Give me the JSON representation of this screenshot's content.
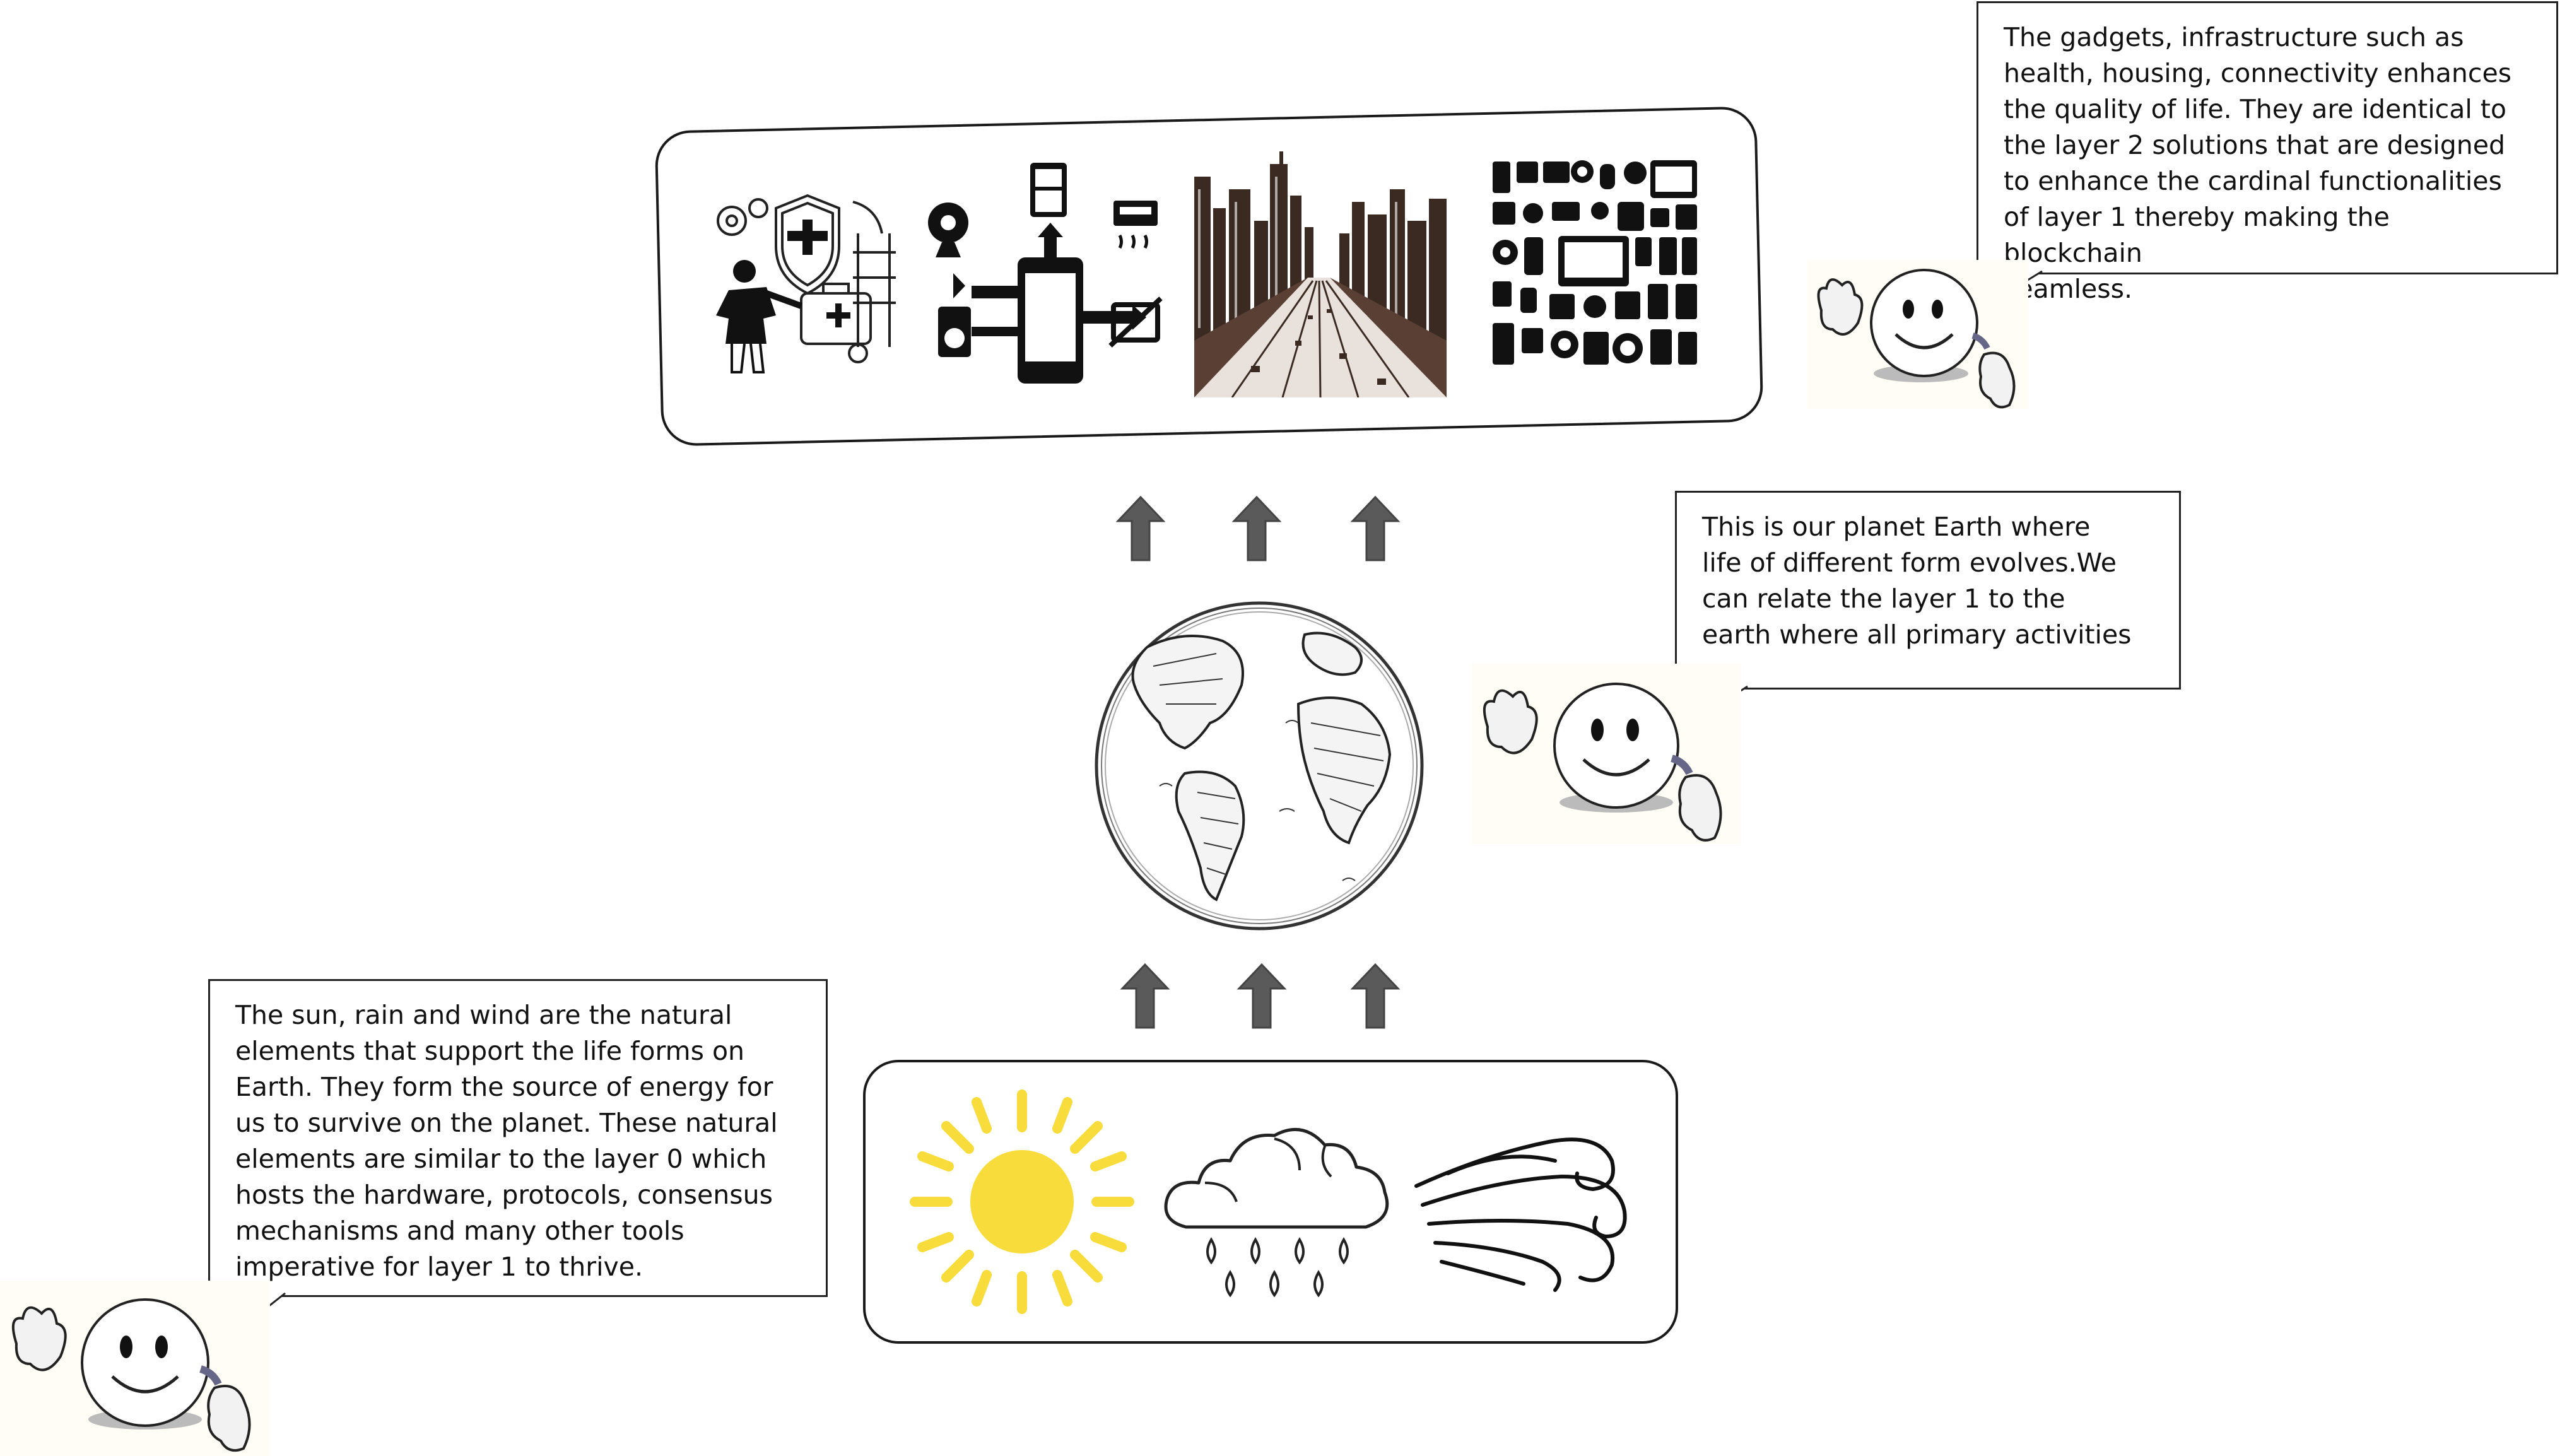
{
  "layers": {
    "top": {
      "items": [
        "health-security-icon",
        "smart-home-connectivity-icon",
        "city-highway-icon",
        "gadgets-grid-icon"
      ]
    },
    "middle": {
      "items": [
        "earth-globe-icon"
      ]
    },
    "bottom": {
      "items": [
        "sun-icon",
        "rain-cloud-icon",
        "wind-icon"
      ]
    }
  },
  "bubbles": {
    "top": "The gadgets, infrastructure such as\nhealth, housing, connectivity enhances\nthe quality of life. They are identical to\nthe layer 2 solutions that are designed\nto enhance the cardinal functionalities\nof layer 1 thereby making the blockchain\nseamless.",
    "middle": "This is our planet Earth where\nlife of different form evolves.We\ncan relate the layer 1 to the\nearth where all primary activities",
    "bottom": "The sun, rain and wind are the natural\nelements that support the life forms on\nEarth. They form the source of energy for\nus to survive on the planet. These natural\nelements are  similar to the layer 0 which\nhosts the hardware, protocols, consensus\nmechanisms and many other tools\nimperative for layer 1 to thrive."
  },
  "colors": {
    "arrow": "#5a5a5a",
    "sun": "#f8dc3c",
    "outline": "#1a1a1a",
    "face_fill": "#ffffff",
    "glove_fill": "#f2f2f2"
  }
}
